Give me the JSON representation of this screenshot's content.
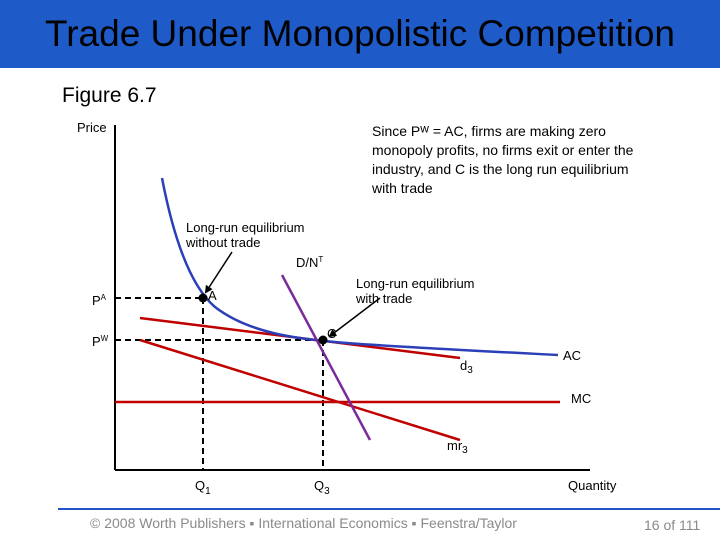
{
  "title": "Trade Under Monopolistic Competition",
  "figure_label": "Figure 6.7",
  "axes": {
    "y_label": "Price",
    "x_label": "Quantity"
  },
  "price_labels": {
    "pa": "P",
    "pa_sup": "A",
    "pw": "P",
    "pw_sup": "W"
  },
  "quantity_labels": {
    "q1": "Q",
    "q1_sub": "1",
    "q3": "Q",
    "q3_sub": "3"
  },
  "curves": {
    "ac": "AC",
    "mc": "MC",
    "d3": "d",
    "d3_sub": "3",
    "mr3": "mr",
    "mr3_sub": "3",
    "dnt": "D/N",
    "dnt_sup": "T"
  },
  "points": {
    "a": "A",
    "c": "C"
  },
  "annotations": {
    "without_trade": [
      "Long-run equilibrium",
      "without trade"
    ],
    "with_trade": [
      "Long-run equilibrium",
      "with trade"
    ],
    "note": [
      "Since Pᵂ = AC, firms are making zero",
      "monopoly profits, no firms exit or enter the",
      "industry, and C is the long run equilibrium",
      "with trade"
    ]
  },
  "colors": {
    "ac": "#2b3fb8",
    "d3": "#c00000",
    "mc": "#c00000",
    "mr3": "#c00000",
    "dnt": "#7b2a9a",
    "title_bar": "#1f5bc8"
  },
  "footer": {
    "copyright": "© 2008 Worth Publishers ▪ International Economics ▪ Feenstra/Taylor",
    "page": "16 of 111"
  }
}
